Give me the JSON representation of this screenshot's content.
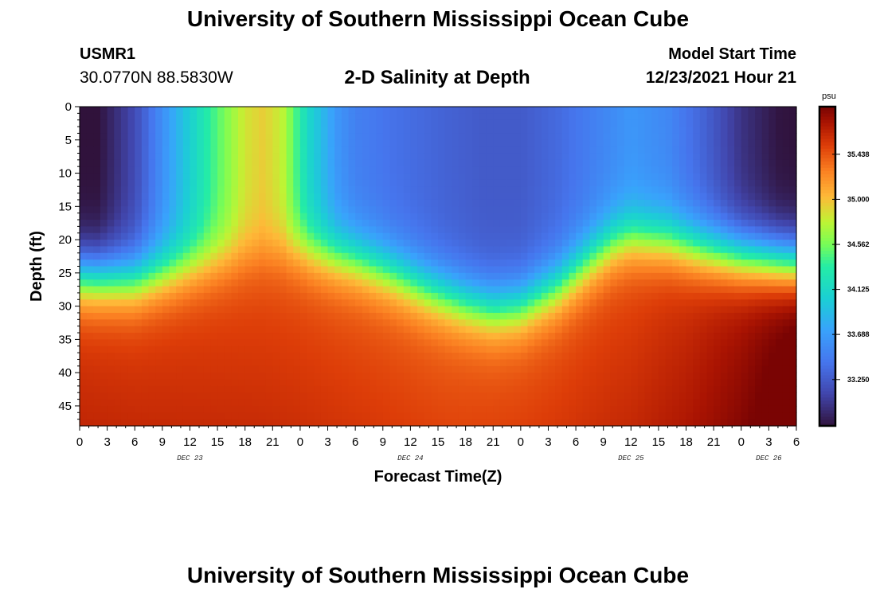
{
  "header": {
    "title": "University of Southern Mississippi Ocean Cube",
    "station": "USMR1",
    "coordinates": "30.0770N  88.5830W",
    "subtitle": "2-D Salinity at Depth",
    "start_label": "Model Start Time",
    "start_value": "12/23/2021 Hour 21"
  },
  "footer": {
    "title": "University of Southern Mississippi Ocean Cube"
  },
  "chart_data": {
    "type": "heatmap",
    "title": "2-D Salinity at Depth",
    "xlabel": "Forecast Time(Z)",
    "ylabel": "Depth (ft)",
    "xlim": [
      0,
      78
    ],
    "ylim": [
      0,
      48
    ],
    "x_ticks": [
      0,
      3,
      6,
      9,
      12,
      15,
      18,
      21,
      24,
      27,
      30,
      33,
      36,
      39,
      42,
      45,
      48,
      51,
      54,
      57,
      60,
      63,
      66,
      69,
      72,
      75,
      78
    ],
    "x_tick_labels": [
      "0",
      "3",
      "6",
      "9",
      "12",
      "15",
      "18",
      "21",
      "0",
      "3",
      "6",
      "9",
      "12",
      "15",
      "18",
      "21",
      "0",
      "3",
      "6",
      "9",
      "12",
      "15",
      "18",
      "21",
      "0",
      "3",
      "6"
    ],
    "y_ticks": [
      0,
      5,
      10,
      15,
      20,
      25,
      30,
      35,
      40,
      45
    ],
    "y_tick_labels": [
      "0",
      "5",
      "10",
      "15",
      "20",
      "25",
      "30",
      "35",
      "40",
      "45"
    ],
    "date_labels": [
      {
        "label": "DEC 23",
        "hour": 12
      },
      {
        "label": "DEC 24",
        "hour": 36
      },
      {
        "label": "DEC 25",
        "hour": 60
      },
      {
        "label": "DEC 26",
        "hour": 75
      }
    ],
    "colorbar": {
      "unit": "psu",
      "min": 32.8,
      "max": 35.9,
      "ticks": [
        35.438,
        35.0,
        34.562,
        34.125,
        33.688,
        33.25
      ],
      "tick_labels": [
        "35.438",
        "35.000",
        "34.562",
        "34.125",
        "33.688",
        "33.250"
      ]
    },
    "halocline": {
      "hours": [
        0,
        6,
        9,
        12,
        16,
        18,
        21,
        24,
        26,
        30,
        34,
        38,
        42,
        45,
        48,
        52,
        56,
        58,
        60,
        64,
        68,
        72,
        75,
        78
      ],
      "depth_ft": [
        25.5,
        26,
        25,
        24,
        23,
        22.5,
        22,
        21.5,
        22,
        23,
        25,
        27.5,
        29.5,
        30.5,
        30,
        27,
        22.5,
        20.5,
        19.5,
        20,
        21.5,
        22.5,
        23,
        23.5
      ]
    },
    "surface_salinity": {
      "hours": [
        0,
        2,
        6,
        10,
        14,
        18,
        20,
        22,
        25,
        28,
        30,
        34,
        40,
        44,
        48,
        52,
        56,
        60,
        64,
        68,
        72,
        76,
        78
      ],
      "psu": [
        32.8,
        32.8,
        33.15,
        33.75,
        34.35,
        34.85,
        34.95,
        34.8,
        34.1,
        33.65,
        33.5,
        33.4,
        33.3,
        33.25,
        33.25,
        33.35,
        33.5,
        33.65,
        33.55,
        33.3,
        33.0,
        32.82,
        32.8
      ]
    },
    "deep_salinity": {
      "hours": [
        0,
        20,
        30,
        40,
        50,
        60,
        66,
        72,
        78
      ],
      "psu": [
        35.55,
        35.5,
        35.45,
        35.42,
        35.45,
        35.5,
        35.6,
        35.75,
        35.95
      ]
    },
    "grid": false
  }
}
